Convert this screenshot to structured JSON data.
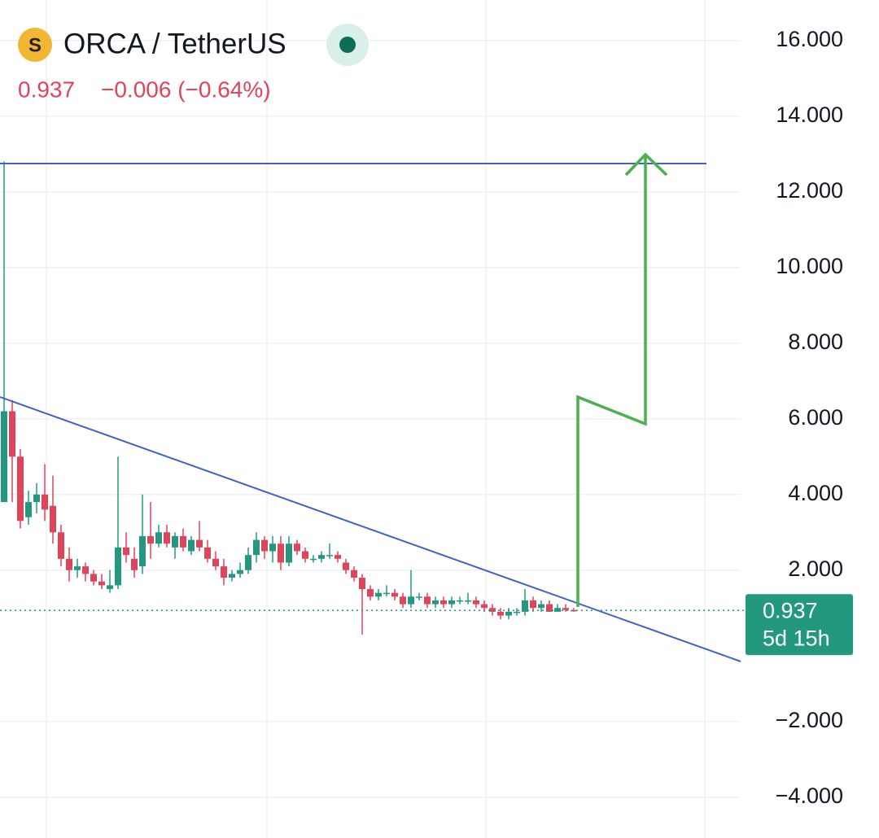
{
  "header": {
    "title": "ORCA / TetherUS",
    "price": "0.937",
    "change": "−0.006 (−0.64%)"
  },
  "price_tag": {
    "price": "0.937",
    "countdown": "5d 15h"
  },
  "chart_data": {
    "type": "candlestick",
    "up_color": "#22997f",
    "down_color": "#e0435a",
    "grid": true,
    "ylim": [
      -5.08,
      17.07
    ],
    "yticks": [
      {
        "value": 16,
        "label": "16.000"
      },
      {
        "value": 14,
        "label": "14.000"
      },
      {
        "value": 12,
        "label": "12.000"
      },
      {
        "value": 10,
        "label": "10.000"
      },
      {
        "value": 8,
        "label": "8.000"
      },
      {
        "value": 6,
        "label": "6.000"
      },
      {
        "value": 4,
        "label": "4.000"
      },
      {
        "value": 2,
        "label": "2.000"
      },
      {
        "value": -2,
        "label": "−2.000"
      },
      {
        "value": -4,
        "label": "−4.000"
      }
    ],
    "ohlc": [
      [
        3.8,
        12.8,
        3.8,
        6.2
      ],
      [
        6.2,
        6.5,
        3.8,
        5.0
      ],
      [
        5.0,
        5.2,
        3.1,
        3.3
      ],
      [
        3.4,
        4.1,
        3.2,
        3.8
      ],
      [
        3.8,
        4.3,
        3.5,
        4.0
      ],
      [
        4.0,
        4.8,
        3.3,
        3.6
      ],
      [
        3.7,
        4.5,
        2.7,
        3.0
      ],
      [
        3.0,
        3.2,
        2.1,
        2.3
      ],
      [
        2.3,
        2.6,
        1.7,
        2.0
      ],
      [
        2.0,
        2.3,
        1.8,
        2.1
      ],
      [
        2.1,
        2.2,
        1.7,
        1.9
      ],
      [
        1.9,
        2.0,
        1.6,
        1.7
      ],
      [
        1.7,
        1.9,
        1.5,
        1.6
      ],
      [
        1.5,
        2.0,
        1.4,
        1.6
      ],
      [
        1.6,
        5.0,
        1.5,
        2.6
      ],
      [
        2.6,
        3.0,
        2.2,
        2.4
      ],
      [
        2.3,
        2.6,
        1.8,
        2.0
      ],
      [
        2.1,
        4.0,
        1.9,
        2.9
      ],
      [
        2.9,
        3.8,
        2.3,
        2.7
      ],
      [
        2.7,
        3.2,
        2.6,
        3.0
      ],
      [
        3.0,
        3.2,
        2.6,
        2.7
      ],
      [
        2.6,
        3.0,
        2.3,
        2.9
      ],
      [
        2.9,
        3.1,
        2.5,
        2.6
      ],
      [
        2.5,
        2.9,
        2.4,
        2.8
      ],
      [
        2.8,
        3.3,
        2.5,
        2.6
      ],
      [
        2.6,
        2.8,
        2.2,
        2.3
      ],
      [
        2.3,
        2.5,
        2.0,
        2.1
      ],
      [
        2.1,
        2.3,
        1.6,
        1.8
      ],
      [
        1.8,
        2.0,
        1.7,
        1.9
      ],
      [
        1.9,
        2.2,
        1.8,
        2.0
      ],
      [
        2.0,
        2.6,
        1.9,
        2.4
      ],
      [
        2.4,
        3.0,
        2.2,
        2.8
      ],
      [
        2.8,
        2.9,
        2.3,
        2.5
      ],
      [
        2.5,
        2.9,
        2.2,
        2.7
      ],
      [
        2.7,
        2.9,
        2.0,
        2.2
      ],
      [
        2.2,
        2.9,
        2.1,
        2.7
      ],
      [
        2.7,
        2.8,
        2.4,
        2.5
      ],
      [
        2.5,
        2.6,
        2.2,
        2.3
      ],
      [
        2.3,
        2.4,
        2.2,
        2.3
      ],
      [
        2.3,
        2.5,
        2.2,
        2.4
      ],
      [
        2.4,
        2.7,
        2.3,
        2.4
      ],
      [
        2.4,
        2.5,
        2.2,
        2.3
      ],
      [
        2.2,
        2.3,
        1.9,
        2.0
      ],
      [
        2.0,
        2.1,
        1.7,
        1.8
      ],
      [
        1.8,
        1.9,
        0.3,
        1.5
      ],
      [
        1.5,
        1.6,
        1.2,
        1.3
      ],
      [
        1.3,
        1.5,
        1.2,
        1.4
      ],
      [
        1.4,
        1.6,
        1.3,
        1.4
      ],
      [
        1.4,
        1.5,
        1.2,
        1.3
      ],
      [
        1.3,
        1.4,
        1.0,
        1.1
      ],
      [
        1.1,
        2.0,
        1.0,
        1.3
      ],
      [
        1.3,
        1.4,
        1.2,
        1.3
      ],
      [
        1.3,
        1.4,
        1.0,
        1.1
      ],
      [
        1.1,
        1.3,
        1.0,
        1.2
      ],
      [
        1.2,
        1.3,
        1.0,
        1.1
      ],
      [
        1.1,
        1.3,
        1.0,
        1.2
      ],
      [
        1.2,
        1.3,
        1.1,
        1.2
      ],
      [
        1.2,
        1.4,
        1.1,
        1.2
      ],
      [
        1.2,
        1.3,
        1.0,
        1.1
      ],
      [
        1.1,
        1.2,
        0.9,
        1.0
      ],
      [
        1.0,
        1.1,
        0.8,
        0.9
      ],
      [
        0.9,
        1.0,
        0.7,
        0.8
      ],
      [
        0.8,
        1.0,
        0.7,
        0.9
      ],
      [
        0.9,
        1.0,
        0.8,
        0.9
      ],
      [
        0.9,
        1.5,
        0.8,
        1.2
      ],
      [
        1.2,
        1.3,
        0.9,
        1.0
      ],
      [
        1.0,
        1.2,
        0.9,
        1.1
      ],
      [
        1.1,
        1.2,
        0.9,
        0.9
      ],
      [
        0.9,
        1.1,
        0.9,
        1.0
      ],
      [
        1.0,
        1.1,
        0.9,
        0.95
      ],
      [
        0.943,
        1.0,
        0.9,
        0.937
      ]
    ]
  }
}
